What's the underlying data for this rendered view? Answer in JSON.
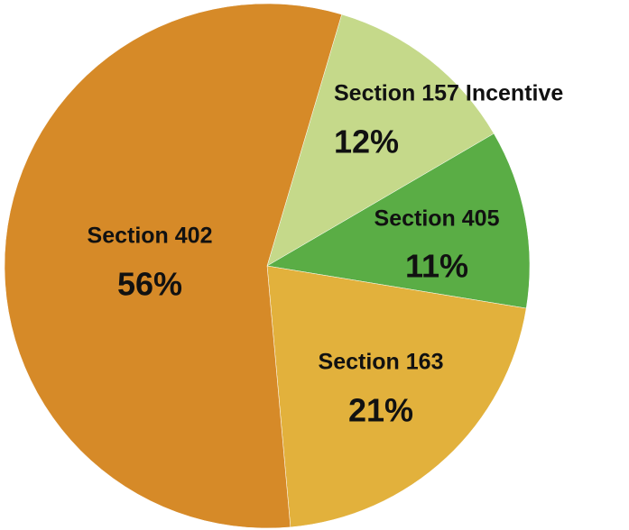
{
  "chart_data": {
    "type": "pie",
    "categories": [
      "Section 157 Incentive",
      "Section 405",
      "Section 163",
      "Section 402"
    ],
    "values": [
      12,
      11,
      21,
      56
    ],
    "value_labels": [
      "12%",
      "11%",
      "21%",
      "56%"
    ],
    "colors": [
      "#c5d98a",
      "#5aad45",
      "#e2b13c",
      "#d68a28"
    ]
  }
}
